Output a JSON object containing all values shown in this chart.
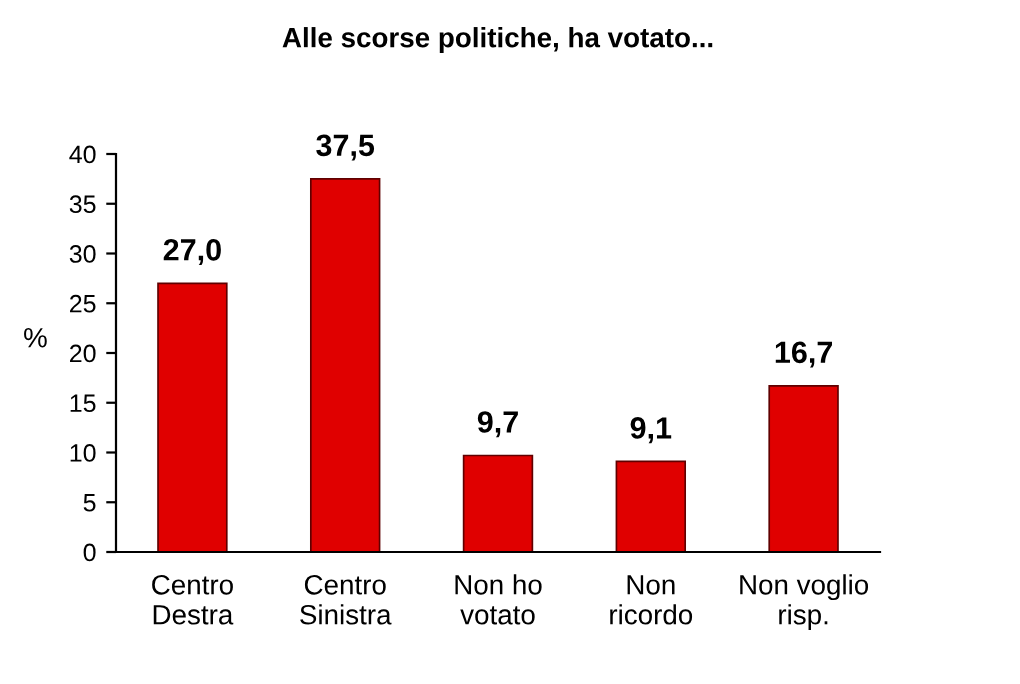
{
  "chart_data": {
    "type": "bar",
    "title": "Alle scorse politiche, ha votato...",
    "ylabel": "%",
    "categories": [
      "Centro\nDestra",
      "Centro\nSinistra",
      "Non ho\nvotato",
      "Non\nricordo",
      "Non voglio\nrisp."
    ],
    "values": [
      27.0,
      37.5,
      9.7,
      9.1,
      16.7
    ],
    "value_labels": [
      "27,0",
      "37,5",
      "9,7",
      "9,1",
      "16,7"
    ],
    "color": "#e00000",
    "ylim": [
      0,
      40
    ],
    "yticks": [
      0,
      5,
      10,
      15,
      20,
      25,
      30,
      35,
      40
    ],
    "grid": false
  }
}
